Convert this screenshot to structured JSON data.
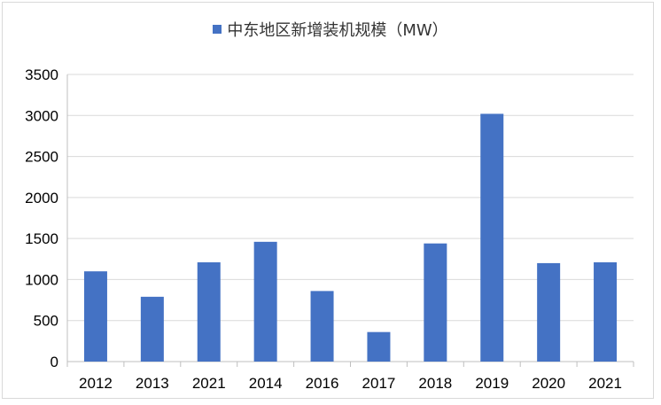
{
  "chart_data": {
    "type": "bar",
    "categories": [
      "2012",
      "2013",
      "2021",
      "2014",
      "2016",
      "2017",
      "2018",
      "2019",
      "2020",
      "2021"
    ],
    "series": [
      {
        "name": "中东地区新增装机规模（MW）",
        "values": [
          1100,
          790,
          1210,
          1460,
          860,
          360,
          1440,
          3020,
          1200,
          1210
        ],
        "color": "#4472c4"
      }
    ],
    "ylim": [
      0,
      3500
    ],
    "yticks": [
      0,
      500,
      1000,
      1500,
      2000,
      2500,
      3000,
      3500
    ],
    "grid": true,
    "legend_position": "top-center",
    "colors": {
      "gridline": "#d9d9d9",
      "axis": "#bfbfbf",
      "tick_text": "#000000"
    }
  }
}
